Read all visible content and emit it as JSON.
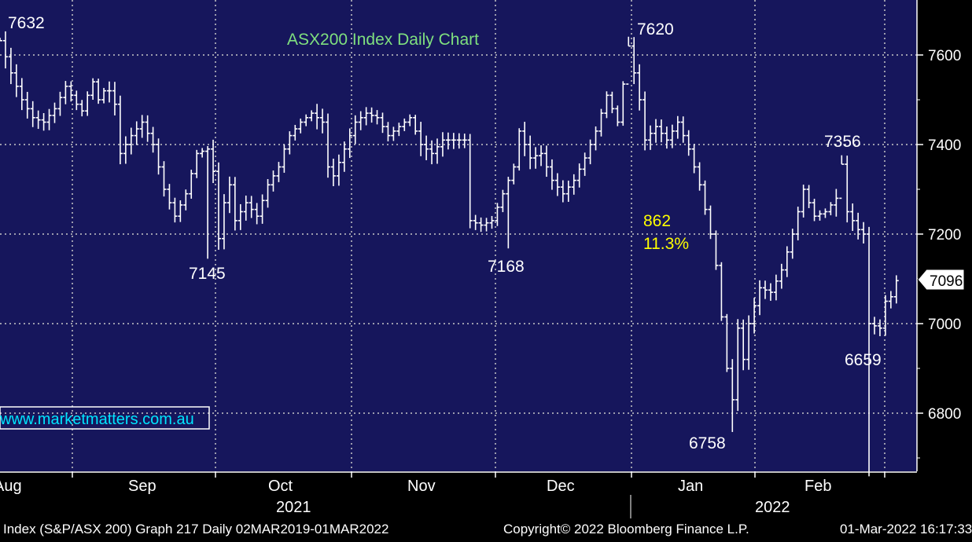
{
  "chart_data": {
    "type": "ohlc",
    "title": "ASX200 Index Daily Chart",
    "y_ticks": [
      "7600",
      "7400",
      "7200",
      "7000",
      "6800"
    ],
    "ylim": [
      6660,
      7710
    ],
    "current_value": "7096",
    "month_labels": [
      "Aug",
      "Sep",
      "Oct",
      "Nov",
      "Dec",
      "Jan",
      "Feb"
    ],
    "year_labels": [
      "2021",
      "2022"
    ],
    "grid": true,
    "annotations": {
      "peak_aug": "7632",
      "low_sep": "7145",
      "low_nov": "7168",
      "peak_jan": "7620",
      "drop_points": "862",
      "drop_percent": "11.3%",
      "low_jan": "6758",
      "peak_feb": "7356",
      "low_feb": "6659"
    },
    "watermark": "www.marketmatters.com.au",
    "colors": {
      "background": "#16165c",
      "price": "#ffffff",
      "title": "#7fe07f",
      "highlight": "#ffff00",
      "watermark": "#00e5ff"
    },
    "path_points": [
      [
        0,
        7632
      ],
      [
        2,
        7560
      ],
      [
        4,
        7500
      ],
      [
        6,
        7460
      ],
      [
        8,
        7450
      ],
      [
        10,
        7480
      ],
      [
        12,
        7530
      ],
      [
        14,
        7490
      ],
      [
        15,
        7475
      ],
      [
        16,
        7510
      ],
      [
        17,
        7540
      ],
      [
        18,
        7500
      ],
      [
        19,
        7520
      ],
      [
        20,
        7520
      ],
      [
        21,
        7490
      ],
      [
        22,
        7380
      ],
      [
        24,
        7420
      ],
      [
        26,
        7450
      ],
      [
        28,
        7400
      ],
      [
        30,
        7300
      ],
      [
        32,
        7240
      ],
      [
        34,
        7290
      ],
      [
        36,
        7380
      ],
      [
        38,
        7390
      ],
      [
        39,
        7340
      ],
      [
        40,
        7190
      ],
      [
        41,
        7270
      ],
      [
        42,
        7310
      ],
      [
        43,
        7230
      ],
      [
        45,
        7270
      ],
      [
        47,
        7240
      ],
      [
        49,
        7310
      ],
      [
        51,
        7350
      ],
      [
        52,
        7390
      ],
      [
        53,
        7420
      ],
      [
        55,
        7450
      ],
      [
        57,
        7470
      ],
      [
        59,
        7450
      ],
      [
        60,
        7350
      ],
      [
        61,
        7330
      ],
      [
        63,
        7390
      ],
      [
        65,
        7450
      ],
      [
        67,
        7470
      ],
      [
        69,
        7460
      ],
      [
        71,
        7420
      ],
      [
        73,
        7440
      ],
      [
        75,
        7460
      ],
      [
        77,
        7400
      ],
      [
        79,
        7380
      ],
      [
        81,
        7410
      ],
      [
        83,
        7410
      ],
      [
        85,
        7410
      ],
      [
        86,
        7230
      ],
      [
        88,
        7220
      ],
      [
        90,
        7230
      ],
      [
        92,
        7290
      ],
      [
        94,
        7350
      ],
      [
        95,
        7430
      ],
      [
        97,
        7370
      ],
      [
        99,
        7380
      ],
      [
        101,
        7320
      ],
      [
        103,
        7290
      ],
      [
        105,
        7320
      ],
      [
        107,
        7370
      ],
      [
        109,
        7430
      ],
      [
        111,
        7510
      ],
      [
        113,
        7450
      ],
      [
        115,
        7620
      ],
      [
        117,
        7500
      ],
      [
        118,
        7410
      ],
      [
        120,
        7440
      ],
      [
        122,
        7410
      ],
      [
        124,
        7450
      ],
      [
        126,
        7390
      ],
      [
        128,
        7310
      ],
      [
        130,
        7200
      ],
      [
        131,
        7130
      ],
      [
        133,
        6900
      ],
      [
        134,
        6830
      ],
      [
        135,
        6990
      ],
      [
        136,
        6920
      ],
      [
        137,
        7000
      ],
      [
        139,
        7080
      ],
      [
        141,
        7070
      ],
      [
        143,
        7120
      ],
      [
        145,
        7200
      ],
      [
        147,
        7300
      ],
      [
        149,
        7240
      ],
      [
        151,
        7250
      ],
      [
        153,
        7280
      ],
      [
        154,
        7356
      ],
      [
        155,
        7250
      ],
      [
        157,
        7210
      ],
      [
        158,
        7200
      ],
      [
        159,
        7000
      ],
      [
        161,
        6990
      ],
      [
        162,
        7050
      ],
      [
        163,
        7060
      ],
      [
        164,
        7096
      ]
    ]
  },
  "footer": {
    "left": "Index (S&P/ASX 200) Graph 217  Daily 02MAR2019-01MAR2022",
    "center": "Copyright© 2022 Bloomberg Finance L.P.",
    "right": "01-Mar-2022 16:17:33"
  }
}
